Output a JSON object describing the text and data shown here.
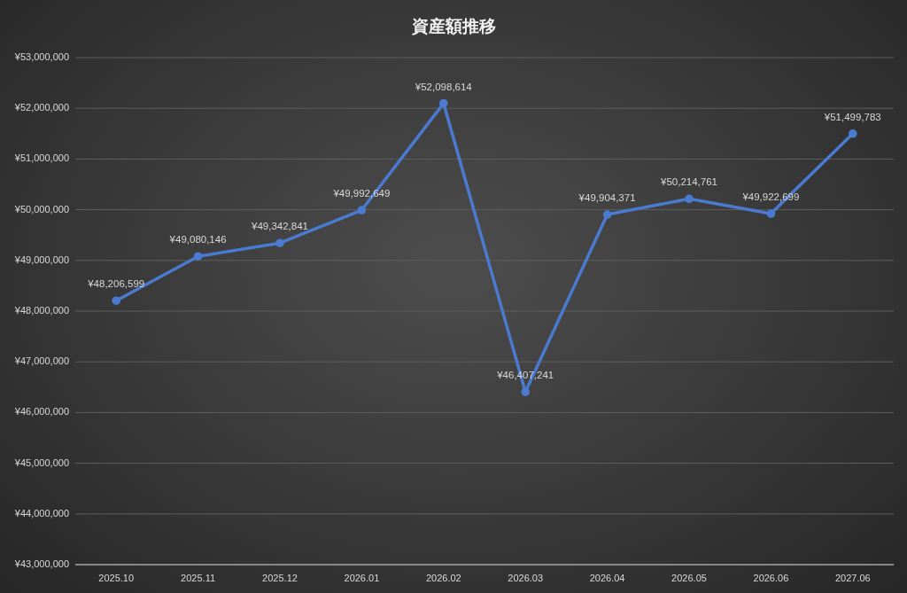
{
  "chart_data": {
    "type": "line",
    "title": "資産額推移",
    "categories": [
      "2025.10",
      "2025.11",
      "2025.12",
      "2026.01",
      "2026.02",
      "2026.03",
      "2026.04",
      "2026.05",
      "2026.06",
      "2027.06"
    ],
    "series": [
      {
        "color": "#4a7bd0",
        "values": [
          48206599,
          49080146,
          49342841,
          49992649,
          52098614,
          46407241,
          49904371,
          50214761,
          49922699,
          51499783
        ],
        "value_labels": [
          "¥48,206,599",
          "¥49,080,146",
          "¥49,342,841",
          "¥49,992,649",
          "¥52,098,614",
          "¥46,407,241",
          "¥49,904,371",
          "¥50,214,761",
          "¥49,922,699",
          "¥51,499,783"
        ]
      }
    ],
    "ylim": [
      43000000,
      53000000
    ],
    "yticks": [
      {
        "value": 43000000,
        "label": "¥43,000,000"
      },
      {
        "value": 44000000,
        "label": "¥44,000,000"
      },
      {
        "value": 45000000,
        "label": "¥45,000,000"
      },
      {
        "value": 46000000,
        "label": "¥46,000,000"
      },
      {
        "value": 47000000,
        "label": "¥47,000,000"
      },
      {
        "value": 48000000,
        "label": "¥48,000,000"
      },
      {
        "value": 49000000,
        "label": "¥49,000,000"
      },
      {
        "value": 50000000,
        "label": "¥50,000,000"
      },
      {
        "value": 51000000,
        "label": "¥51,000,000"
      },
      {
        "value": 52000000,
        "label": "¥52,000,000"
      },
      {
        "value": 53000000,
        "label": "¥53,000,000"
      }
    ],
    "grid": "y",
    "marker": "circle",
    "line_style": "solid"
  }
}
